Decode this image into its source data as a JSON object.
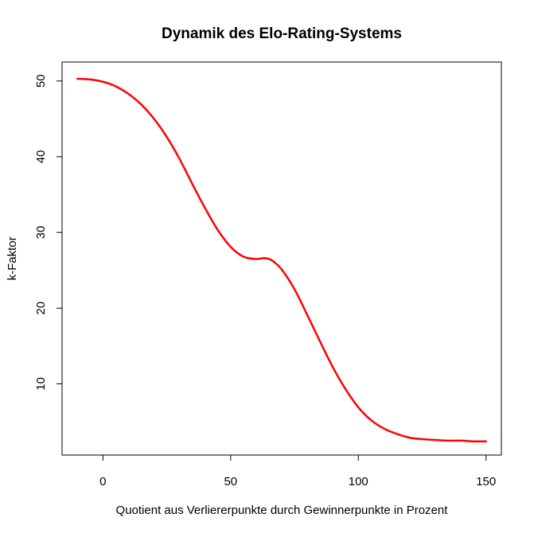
{
  "chart_data": {
    "type": "line",
    "title": "Dynamik des Elo-Rating-Systems",
    "xlabel": "Quotient aus Verliererpunkte durch Gewinnerpunkte in Prozent",
    "ylabel": "k-Faktor",
    "xlim": [
      -16,
      156
    ],
    "ylim": [
      0.6,
      52.5
    ],
    "xticks": [
      0,
      50,
      100,
      150
    ],
    "yticks": [
      10,
      20,
      30,
      40,
      50
    ],
    "grid": false,
    "series": [
      {
        "color": "#ff0000",
        "x": [
          -10,
          -5,
          0,
          5,
          10,
          15,
          20,
          25,
          30,
          35,
          40,
          45,
          50,
          55,
          60,
          63,
          65,
          67,
          70,
          75,
          80,
          85,
          90,
          95,
          100,
          105,
          110,
          115,
          120,
          125,
          130,
          135,
          140,
          145,
          150
        ],
        "y": [
          50.3,
          50.2,
          49.9,
          49.3,
          48.3,
          46.9,
          45.0,
          42.6,
          39.7,
          36.4,
          33.2,
          30.3,
          28.1,
          26.8,
          26.5,
          26.6,
          26.5,
          26.1,
          25.1,
          22.5,
          19.1,
          15.6,
          12.2,
          9.3,
          6.9,
          5.2,
          4.1,
          3.4,
          2.9,
          2.7,
          2.6,
          2.5,
          2.5,
          2.4,
          2.4
        ]
      }
    ]
  }
}
